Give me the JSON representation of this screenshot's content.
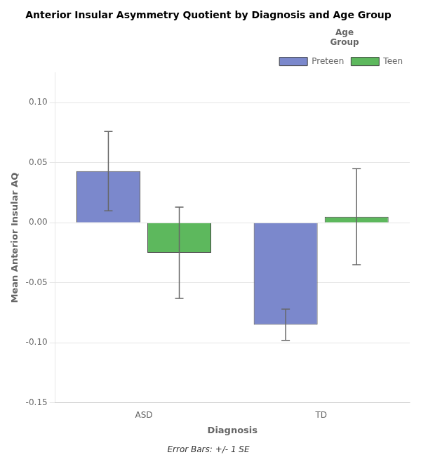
{
  "chart_data": {
    "type": "bar",
    "title": "Anterior Insular Asymmetry Quotient by Diagnosis and Age Group",
    "xlabel": "Diagnosis",
    "ylabel": "Mean Anterior Insular AQ",
    "footnote": "Error Bars: +/- 1 SE",
    "legend_title": "Age\nGroup",
    "legend": "upper right",
    "grid": true,
    "categories": [
      "ASD",
      "TD"
    ],
    "series": [
      {
        "name": "Preteen",
        "color": "#7b88cc",
        "values": [
          0.043,
          -0.085
        ],
        "errors": [
          0.033,
          0.013
        ]
      },
      {
        "name": "Teen",
        "color": "#5db85d",
        "values": [
          -0.025,
          0.005
        ],
        "errors": [
          0.038,
          0.04
        ]
      }
    ],
    "ylim": [
      -0.15,
      0.125
    ],
    "yticks": [
      -0.15,
      {
        "value": -0.1,
        "label": "-0.10"
      },
      -0.05,
      {
        "value": 0,
        "label": "0.00"
      },
      0.05,
      {
        "value": 0.1,
        "label": "0.10"
      }
    ]
  }
}
